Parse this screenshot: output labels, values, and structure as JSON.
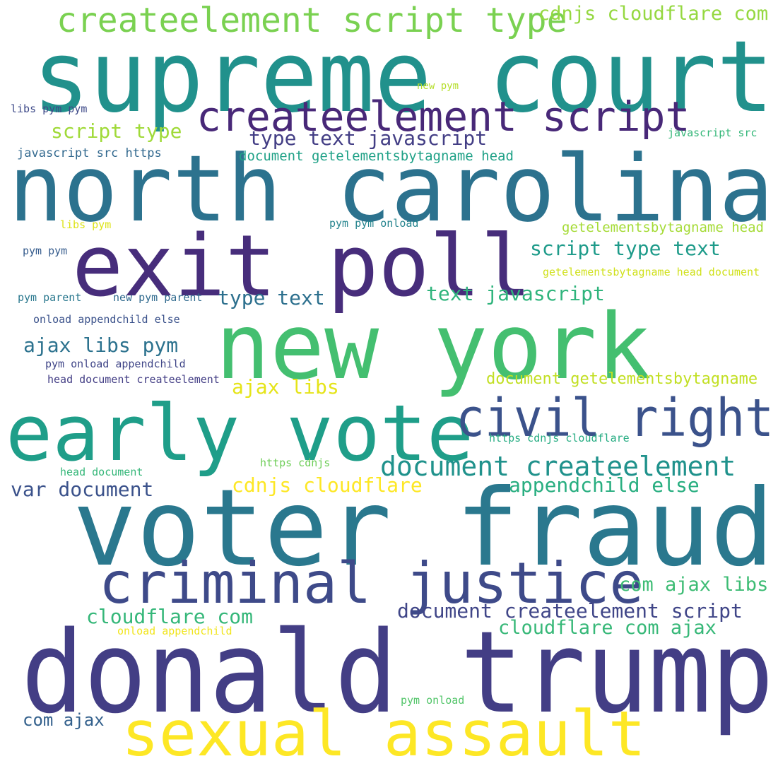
{
  "words": [
    {
      "id": 0,
      "text": "supreme court",
      "color": "#21918c"
    },
    {
      "id": 1,
      "text": "north carolina",
      "color": "#2c728e"
    },
    {
      "id": 2,
      "text": "exit poll",
      "color": "#472d7b"
    },
    {
      "id": 3,
      "text": "new york",
      "color": "#44bf70"
    },
    {
      "id": 4,
      "text": "early vote",
      "color": "#1f9e89"
    },
    {
      "id": 5,
      "text": "civil right",
      "color": "#3b528b"
    },
    {
      "id": 6,
      "text": "voter fraud",
      "color": "#2a788e"
    },
    {
      "id": 7,
      "text": "criminal justice",
      "color": "#3e4a89"
    },
    {
      "id": 8,
      "text": "donald trump",
      "color": "#433e85"
    },
    {
      "id": 9,
      "text": "sexual assault",
      "color": "#fde725"
    },
    {
      "id": 10,
      "text": "createelement script type",
      "color": "#7ad151"
    },
    {
      "id": 11,
      "text": "createelement script",
      "color": "#482878"
    },
    {
      "id": 12,
      "text": "cdnjs cloudflare com",
      "color": "#95d840"
    },
    {
      "id": 13,
      "text": "script type",
      "color": "#a0da39"
    },
    {
      "id": 14,
      "text": "type text javascript",
      "color": "#433e85"
    },
    {
      "id": 15,
      "text": "document getelementsbytagname head",
      "color": "#1fa187"
    },
    {
      "id": 16,
      "text": "new pym",
      "color": "#b5de2b"
    },
    {
      "id": 17,
      "text": "libs pym pym",
      "color": "#3e4a89"
    },
    {
      "id": 18,
      "text": "javascript src https",
      "color": "#31688e"
    },
    {
      "id": 19,
      "text": "javascript src",
      "color": "#35b779"
    },
    {
      "id": 20,
      "text": "libs pym",
      "color": "#dde318"
    },
    {
      "id": 21,
      "text": "pym pym onload",
      "color": "#25848e"
    },
    {
      "id": 22,
      "text": "getelementsbytagname head",
      "color": "#a5db36"
    },
    {
      "id": 23,
      "text": "pym pym",
      "color": "#365c8d"
    },
    {
      "id": 24,
      "text": "script type text",
      "color": "#1e9b8a"
    },
    {
      "id": 25,
      "text": "getelementsbytagname head document",
      "color": "#d0e11c"
    },
    {
      "id": 26,
      "text": "pym parent",
      "color": "#2a788e"
    },
    {
      "id": 27,
      "text": "new pym parent",
      "color": "#306a8e"
    },
    {
      "id": 28,
      "text": "type text",
      "color": "#2d708e"
    },
    {
      "id": 29,
      "text": "text javascript",
      "color": "#2fb47c"
    },
    {
      "id": 30,
      "text": "onload appendchild else",
      "color": "#3b528b"
    },
    {
      "id": 31,
      "text": "ajax libs pym",
      "color": "#2c728e"
    },
    {
      "id": 32,
      "text": "pym onload appendchild",
      "color": "#404688"
    },
    {
      "id": 33,
      "text": "head document createelement",
      "color": "#433e85"
    },
    {
      "id": 34,
      "text": "ajax libs",
      "color": "#e5e419"
    },
    {
      "id": 35,
      "text": "document getelementsbytagname",
      "color": "#c2df23"
    },
    {
      "id": 36,
      "text": "https cdnjs cloudflare",
      "color": "#25ac82"
    },
    {
      "id": 37,
      "text": "document createelement",
      "color": "#20928c"
    },
    {
      "id": 38,
      "text": "head document",
      "color": "#35b779"
    },
    {
      "id": 39,
      "text": "https cdnjs",
      "color": "#6ece58"
    },
    {
      "id": 40,
      "text": "var document",
      "color": "#3b528b"
    },
    {
      "id": 41,
      "text": "cdnjs cloudflare",
      "color": "#fde725"
    },
    {
      "id": 42,
      "text": "appendchild else",
      "color": "#28ae80"
    },
    {
      "id": 43,
      "text": "com ajax libs",
      "color": "#3dbc74"
    },
    {
      "id": 44,
      "text": "cloudflare com",
      "color": "#35b779"
    },
    {
      "id": 45,
      "text": "document createelement script",
      "color": "#404688"
    },
    {
      "id": 46,
      "text": "onload appendchild",
      "color": "#f1e51d"
    },
    {
      "id": 47,
      "text": "cloudflare com ajax",
      "color": "#37b878"
    },
    {
      "id": 48,
      "text": "pym onload",
      "color": "#52c569"
    },
    {
      "id": 49,
      "text": "com ajax",
      "color": "#34618d"
    }
  ]
}
